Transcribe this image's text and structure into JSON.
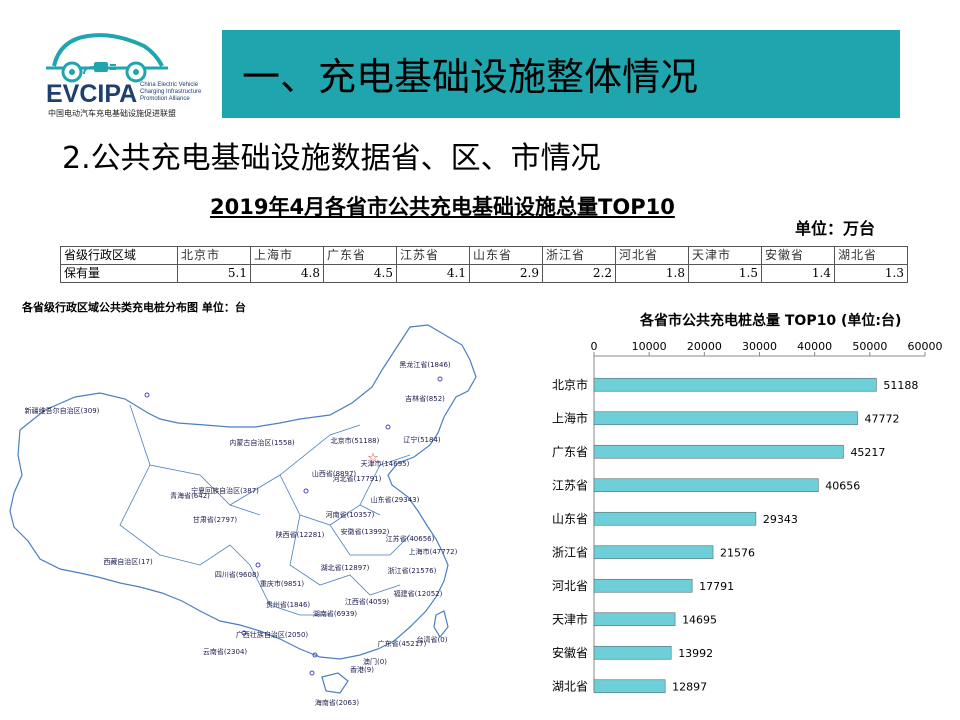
{
  "logo": {
    "acronym": "EVCIPA",
    "english_lines": [
      "China Electric Vehicle",
      "Charging Infrastructure",
      "Promotion Alliance"
    ],
    "chinese_name": "中国电动汽车充电基础设施促进联盟"
  },
  "banner": {
    "title": "一、充电基础设施整体情况"
  },
  "subheading": "2.公共充电基础设施数据省、区、市情况",
  "table": {
    "title": "2019年4月各省市公共充电基础设施总量TOP10",
    "unit": "单位：万台",
    "row1_header": "省级行政区域",
    "row2_header": "保有量",
    "provinces": [
      "北京市",
      "上海市",
      "广东省",
      "江苏省",
      "山东省",
      "浙江省",
      "河北省",
      "天津市",
      "安徽省",
      "湖北省"
    ],
    "values": [
      "5.1",
      "4.8",
      "4.5",
      "4.1",
      "2.9",
      "2.2",
      "1.8",
      "1.5",
      "1.4",
      "1.3"
    ]
  },
  "map": {
    "title": "各省级行政区域公共类充电桩分布图   单位：台",
    "labels": [
      "黑龙江省(1846)",
      "吉林省(852)",
      "新疆维吾尔自治区(309)",
      "辽宁(5184)",
      "内蒙古自治区(1558)",
      "北京市(51188)",
      "天津市(14695)",
      "山西省(8897)",
      "河北省(17791)",
      "青海省(642)",
      "宁夏回族自治区(387)",
      "山东省(29343)",
      "甘肃省(2797)",
      "河南省(10357)",
      "陕西省(12281)",
      "安徽省(13992)",
      "江苏省(40656)",
      "上海市(47772)",
      "西藏自治区(17)",
      "四川省(9608)",
      "湖北省(12897)",
      "浙江省(21576)",
      "重庆市(9851)",
      "福建省(12052)",
      "贵州省(1846)",
      "江西省(4059)",
      "湖南省(6939)",
      "广西壮族自治区(2050)",
      "台湾省(0)",
      "云南省(2304)",
      "广东省(45217)",
      "澳门(0)",
      "香港(9)",
      "海南省(2063)"
    ]
  },
  "chart_data": {
    "type": "bar",
    "orientation": "horizontal",
    "title": "各省市公共充电桩总量 TOP10   (单位:台)",
    "categories": [
      "北京市",
      "上海市",
      "广东省",
      "江苏省",
      "山东省",
      "浙江省",
      "河北省",
      "天津市",
      "安徽省",
      "湖北省"
    ],
    "values": [
      51188,
      47772,
      45217,
      40656,
      29343,
      21576,
      17791,
      14695,
      13992,
      12897
    ],
    "xlim": [
      0,
      60000
    ],
    "ticks": [
      0,
      10000,
      20000,
      30000,
      40000,
      50000,
      60000
    ],
    "axis_position": "top",
    "grid": false,
    "bar_color": "#6fcfd8"
  }
}
